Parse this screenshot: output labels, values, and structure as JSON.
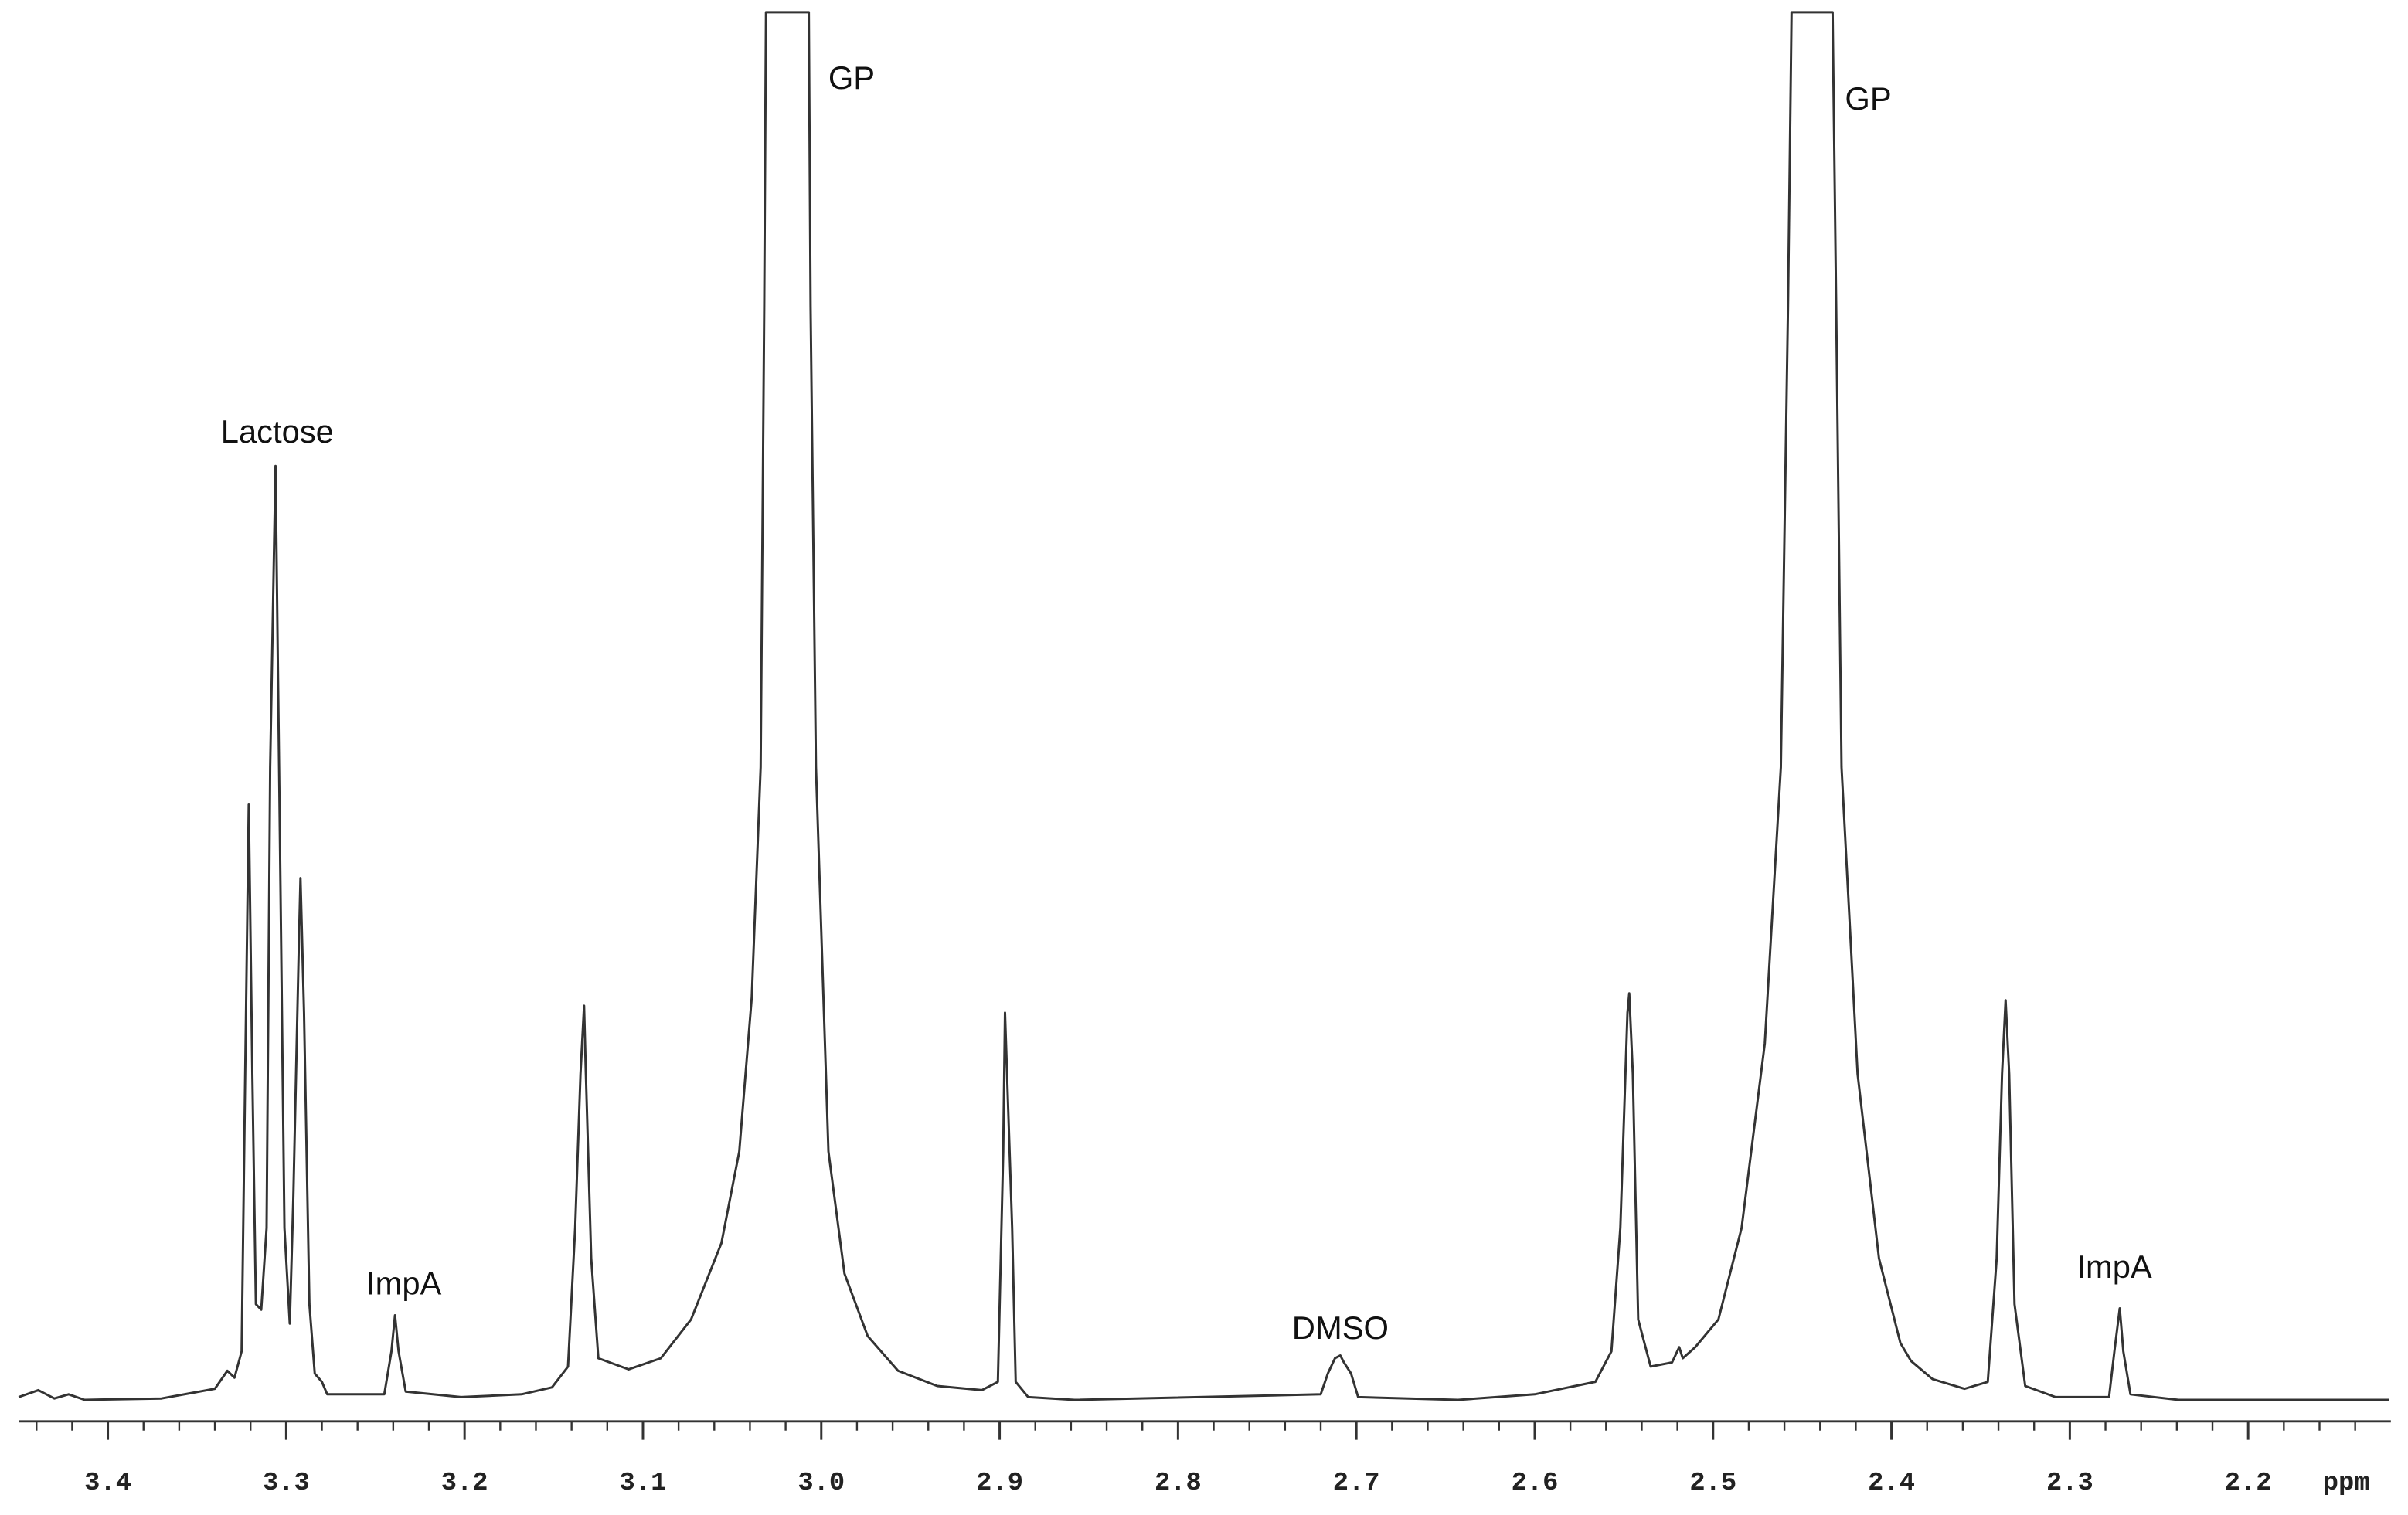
{
  "chart_data": {
    "type": "line",
    "xlabel": "ppm",
    "xlim": [
      3.45,
      2.12
    ],
    "ylim": [
      0,
      100
    ],
    "color": "#333333",
    "xticks": [
      {
        "value": 3.4,
        "label": "3.4"
      },
      {
        "value": 3.3,
        "label": "3.3"
      },
      {
        "value": 3.2,
        "label": "3.2"
      },
      {
        "value": 3.1,
        "label": "3.1"
      },
      {
        "value": 3,
        "label": "3.0"
      },
      2.9,
      2.8,
      2.7,
      2.6,
      2.5,
      2.4,
      2.3,
      2.2
    ],
    "xminorticks": [
      3.44,
      3.42,
      3.4,
      3.38,
      3.36,
      3.34,
      3.32,
      3.3,
      3.28,
      3.26,
      3.24,
      3.22,
      3.2,
      3.18,
      3.16,
      3.14,
      3.12,
      3.1,
      3.08,
      3.06,
      3.04,
      3.02,
      3,
      2.98,
      2.96,
      2.94,
      2.92,
      2.9,
      2.88,
      2.86,
      2.84,
      2.82,
      2.8,
      2.78,
      2.76,
      2.74,
      2.72,
      2.7,
      2.68,
      2.66,
      2.64,
      2.62,
      2.6,
      2.58,
      2.56,
      2.54,
      2.52,
      2.5,
      2.48,
      2.46,
      2.44,
      2.42,
      2.4,
      2.38,
      2.36,
      2.34,
      2.32,
      2.3,
      2.28,
      2.26,
      2.24,
      2.22,
      2.2,
      2.18,
      2.16,
      2.14
    ],
    "x": [
      3.45,
      3.439,
      3.43,
      3.422,
      3.413,
      3.37,
      3.34,
      3.333,
      3.329,
      3.325,
      3.323,
      3.321,
      3.319,
      3.317,
      3.314,
      3.311,
      3.309,
      3.306,
      3.304,
      3.301,
      3.298,
      3.296,
      3.293,
      3.292,
      3.29,
      3.287,
      3.284,
      3.28,
      3.277,
      3.245,
      3.241,
      3.239,
      3.237,
      3.233,
      3.202,
      3.168,
      3.151,
      3.142,
      3.138,
      3.135,
      3.133,
      3.132,
      3.129,
      3.125,
      3.108,
      3.09,
      3.073,
      3.056,
      3.046,
      3.039,
      3.034,
      3.032,
      3.031,
      3.007,
      3.006,
      3.003,
      2.996,
      2.987,
      2.974,
      2.957,
      2.935,
      2.91,
      2.901,
      2.898,
      2.897,
      2.893,
      2.891,
      2.884,
      2.858,
      2.72,
      2.716,
      2.712,
      2.709,
      2.707,
      2.703,
      2.699,
      2.643,
      2.6,
      2.566,
      2.557,
      2.552,
      2.548,
      2.547,
      2.545,
      2.542,
      2.535,
      2.523,
      2.519,
      2.517,
      2.51,
      2.497,
      2.484,
      2.471,
      2.462,
      2.458,
      2.456,
      2.433,
      2.431,
      2.428,
      2.419,
      2.407,
      2.395,
      2.389,
      2.377,
      2.359,
      2.346,
      2.341,
      2.338,
      2.336,
      2.334,
      2.331,
      2.325,
      2.308,
      2.278,
      2.275,
      2.272,
      2.27,
      2.266,
      2.239,
      2.121
    ],
    "values": [
      0.2,
      0.7,
      0.1,
      0.4,
      0,
      0.1,
      0.8,
      2.1,
      1.6,
      3.5,
      23.5,
      42.9,
      23.5,
      6.9,
      6.5,
      12.4,
      45.6,
      67.3,
      45.6,
      12.4,
      5.5,
      14.6,
      32.3,
      37.6,
      27.9,
      6.9,
      1.9,
      1.3,
      0.4,
      0.4,
      3.5,
      6.1,
      3.5,
      0.6,
      0.2,
      0.4,
      0.9,
      2.4,
      12.4,
      23.5,
      28.4,
      23.5,
      10.2,
      3.0,
      2.2,
      3.0,
      5.8,
      11.3,
      17.9,
      29.0,
      45.6,
      78.8,
      100,
      100,
      78.8,
      45.6,
      17.9,
      9.1,
      4.6,
      2.1,
      1.0,
      0.7,
      1.3,
      17.9,
      27.9,
      12.4,
      1.3,
      0.2,
      0,
      0.4,
      1.9,
      3.0,
      3.2,
      2.7,
      1.9,
      0.2,
      0,
      0.4,
      1.3,
      3.5,
      12.4,
      27.9,
      29.3,
      23.5,
      5.8,
      2.4,
      2.7,
      3.8,
      3.0,
      3.8,
      5.8,
      12.4,
      25.7,
      45.6,
      78.8,
      100,
      100,
      78.8,
      45.6,
      23.5,
      10.2,
      4.1,
      2.8,
      1.5,
      0.8,
      1.3,
      10.2,
      23.5,
      28.8,
      23.5,
      6.9,
      1.0,
      0.2,
      0.2,
      3.5,
      6.6,
      3.5,
      0.4,
      0,
      0
    ],
    "annotations": [
      {
        "text": "Lactose",
        "x": 3.305,
        "y": 69.6
      },
      {
        "text": "ImpA",
        "x": 3.234,
        "y": 8.2
      },
      {
        "text": "GP",
        "x": 2.983,
        "y": 95.1
      },
      {
        "text": "DMSO",
        "x": 2.709,
        "y": 5.0
      },
      {
        "text": "GP",
        "x": 2.413,
        "y": 93.6
      },
      {
        "text": "ImpA",
        "x": 2.275,
        "y": 9.4
      }
    ]
  }
}
